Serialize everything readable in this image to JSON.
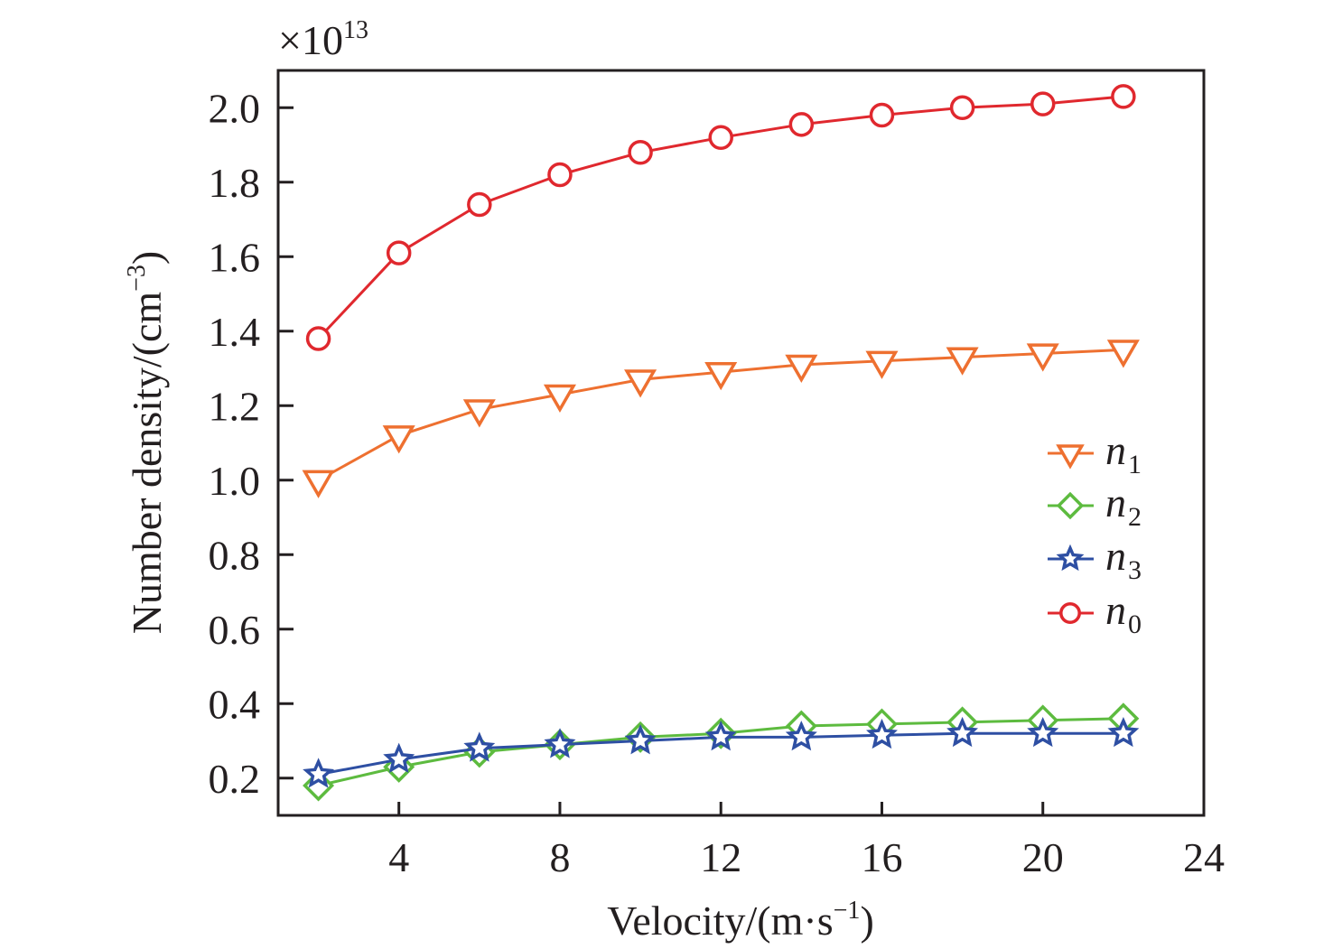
{
  "chart_data": {
    "type": "line",
    "title": "",
    "xlabel": "Velocity/(m·s",
    "xlabel_sup": "−1",
    "xlabel_end": ")",
    "ylabel": "Number density/(cm",
    "ylabel_sup": "−3",
    "ylabel_end": ")",
    "y_multiplier": "×10",
    "y_multiplier_exp": "13",
    "xlim": [
      1,
      24
    ],
    "ylim": [
      0.1,
      2.1
    ],
    "xticks": [
      4,
      8,
      12,
      16,
      20,
      24
    ],
    "xtick_labels": [
      "4",
      "8",
      "12",
      "16",
      "20",
      "24"
    ],
    "yticks": [
      0.2,
      0.4,
      0.6,
      0.8,
      1.0,
      1.2,
      1.4,
      1.6,
      1.8,
      2.0
    ],
    "ytick_labels": [
      "0.2",
      "0.4",
      "0.6",
      "0.8",
      "1.0",
      "1.2",
      "1.4",
      "1.6",
      "1.8",
      "2.0"
    ],
    "grid": false,
    "legend_position": "center-right",
    "x": [
      2,
      4,
      6,
      8,
      10,
      12,
      14,
      16,
      18,
      20,
      22
    ],
    "series": [
      {
        "name": "n",
        "sub": "1",
        "marker": "triangle-down",
        "color": "#EE7030",
        "values": [
          1.0,
          1.12,
          1.19,
          1.23,
          1.27,
          1.29,
          1.31,
          1.32,
          1.33,
          1.34,
          1.35
        ]
      },
      {
        "name": "n",
        "sub": "2",
        "marker": "diamond",
        "color": "#5DBB3F",
        "values": [
          0.18,
          0.23,
          0.27,
          0.29,
          0.31,
          0.32,
          0.34,
          0.345,
          0.35,
          0.355,
          0.36
        ]
      },
      {
        "name": "n",
        "sub": "3",
        "marker": "star",
        "color": "#2E4FA3",
        "values": [
          0.21,
          0.25,
          0.28,
          0.29,
          0.3,
          0.31,
          0.31,
          0.315,
          0.32,
          0.32,
          0.32
        ]
      },
      {
        "name": "n",
        "sub": "0",
        "marker": "circle",
        "color": "#E0282E",
        "values": [
          1.38,
          1.61,
          1.74,
          1.82,
          1.88,
          1.92,
          1.955,
          1.98,
          2.0,
          2.01,
          2.03
        ]
      }
    ]
  }
}
